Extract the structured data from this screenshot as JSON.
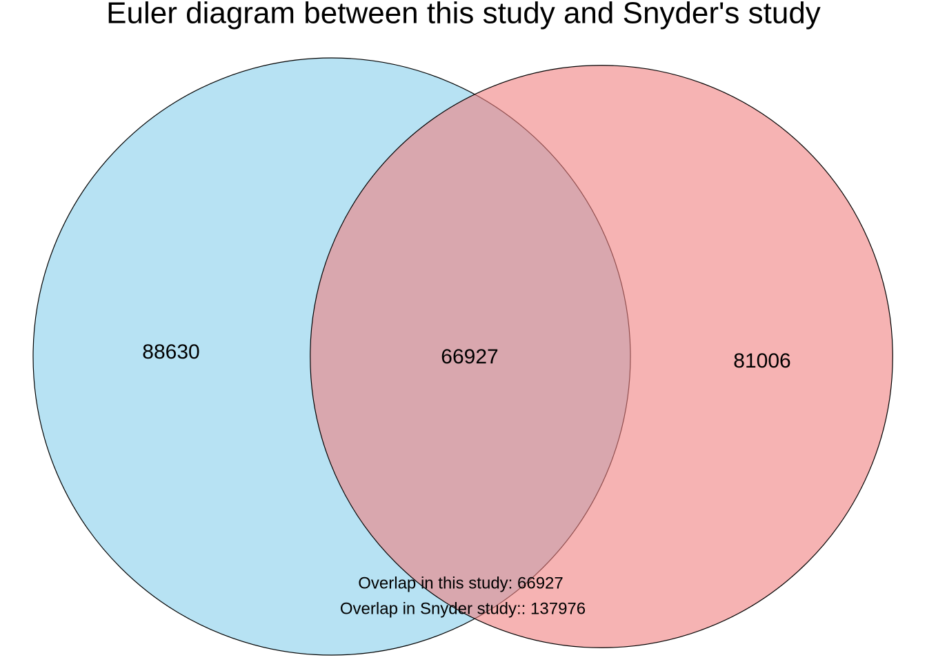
{
  "chart_data": {
    "type": "venn",
    "title": "Euler diagram between this study and Snyder's study",
    "values": [
      88630,
      66927,
      81006
    ],
    "colors": [
      "#87ceeb",
      "#f08080"
    ],
    "annotations": [
      "Overlap in this study: 66927",
      "Overlap in Snyder study:: 137976"
    ]
  }
}
